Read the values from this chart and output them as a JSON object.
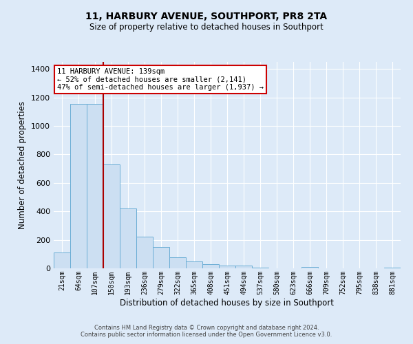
{
  "title": "11, HARBURY AVENUE, SOUTHPORT, PR8 2TA",
  "subtitle": "Size of property relative to detached houses in Southport",
  "xlabel": "Distribution of detached houses by size in Southport",
  "ylabel": "Number of detached properties",
  "bin_labels": [
    "21sqm",
    "64sqm",
    "107sqm",
    "150sqm",
    "193sqm",
    "236sqm",
    "279sqm",
    "322sqm",
    "365sqm",
    "408sqm",
    "451sqm",
    "494sqm",
    "537sqm",
    "580sqm",
    "623sqm",
    "666sqm",
    "709sqm",
    "752sqm",
    "795sqm",
    "838sqm",
    "881sqm"
  ],
  "bar_values": [
    110,
    1155,
    1155,
    730,
    420,
    220,
    150,
    75,
    50,
    30,
    20,
    20,
    5,
    0,
    0,
    10,
    0,
    0,
    0,
    0,
    5
  ],
  "bar_color": "#ccdff2",
  "bar_edge_color": "#6aadd5",
  "background_color": "#ddeaf8",
  "grid_color": "#ffffff",
  "fig_bg_color": "#ddeaf8",
  "vline_color": "#aa0000",
  "annotation_text": "11 HARBURY AVENUE: 139sqm\n← 52% of detached houses are smaller (2,141)\n47% of semi-detached houses are larger (1,937) →",
  "annotation_box_edge_color": "#cc0000",
  "ylim": [
    0,
    1450
  ],
  "yticks": [
    0,
    200,
    400,
    600,
    800,
    1000,
    1200,
    1400
  ],
  "footer_line1": "Contains HM Land Registry data © Crown copyright and database right 2024.",
  "footer_line2": "Contains public sector information licensed under the Open Government Licence v3.0."
}
